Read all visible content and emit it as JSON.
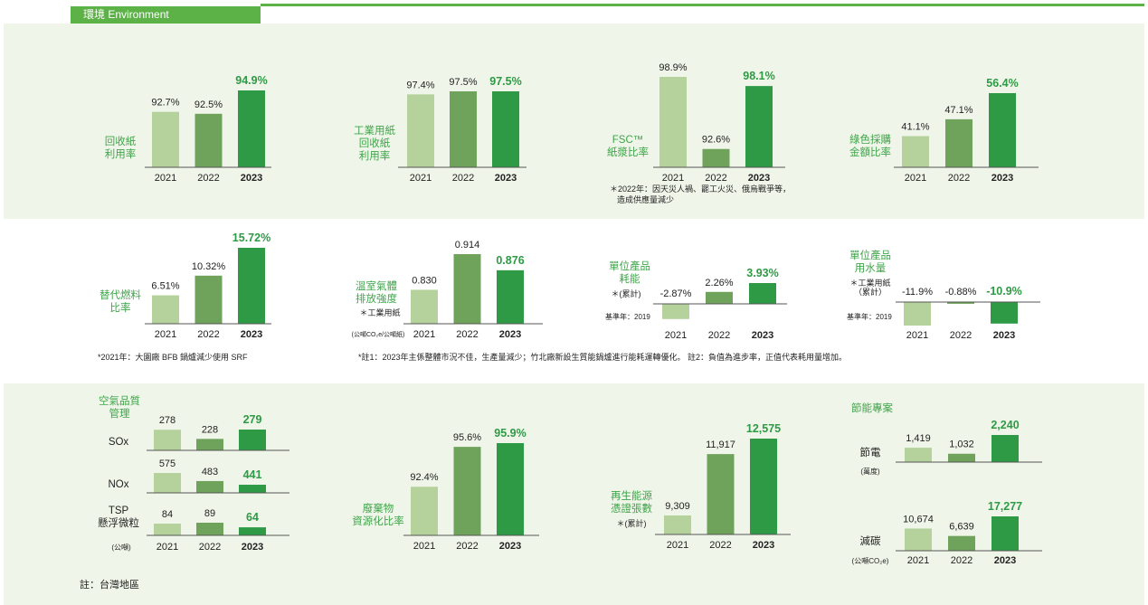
{
  "header": {
    "title": "環境 Environment"
  },
  "colors": {
    "c2021": "#b5d19c",
    "c2022": "#6fa35c",
    "c2023": "#2e9a45",
    "label_green": "#3fa44a",
    "axis": "#555555"
  },
  "chart_data": [
    {
      "type": "bar",
      "title_lines": [
        "回收紙",
        "利用率"
      ],
      "categories": [
        "2021",
        "2022",
        "2023"
      ],
      "values": [
        92.7,
        92.5,
        94.9
      ],
      "value_labels": [
        "92.7%",
        "92.5%",
        "94.9%"
      ]
    },
    {
      "type": "bar",
      "title_lines": [
        "工業用紙",
        "回收紙",
        "利用率"
      ],
      "categories": [
        "2021",
        "2022",
        "2023"
      ],
      "values": [
        97.4,
        97.5,
        97.5
      ],
      "value_labels": [
        "97.4%",
        "97.5%",
        "97.5%"
      ]
    },
    {
      "type": "bar",
      "title_lines": [
        "FSC™",
        "紙漿比率"
      ],
      "categories": [
        "2021",
        "2022",
        "2023"
      ],
      "values": [
        98.9,
        92.6,
        98.1
      ],
      "value_labels": [
        "98.9%",
        "92.6%",
        "98.1%"
      ],
      "notes": [
        "＊2022年：因天災人禍、罷工火災、俄烏戰爭等，",
        "造成供應量減少"
      ]
    },
    {
      "type": "bar",
      "title_lines": [
        "綠色採購",
        "金額比率"
      ],
      "categories": [
        "2021",
        "2022",
        "2023"
      ],
      "values": [
        41.1,
        47.1,
        56.4
      ],
      "value_labels": [
        "41.1%",
        "47.1%",
        "56.4%"
      ]
    },
    {
      "type": "bar",
      "title_lines": [
        "替代燃料",
        "比率"
      ],
      "categories": [
        "2021",
        "2022",
        "2023"
      ],
      "values": [
        6.51,
        10.32,
        15.72
      ],
      "value_labels": [
        "6.51%",
        "10.32%",
        "15.72%"
      ],
      "footnote": "*2021年：大園廠 BFB 鍋爐減少使用 SRF"
    },
    {
      "type": "bar",
      "title_lines": [
        "溫室氣體",
        "排放強度"
      ],
      "subtitle": "＊工業用紙",
      "unit": "(公噸CO₂e/公噸紙)",
      "categories": [
        "2021",
        "2022",
        "2023"
      ],
      "values": [
        0.83,
        0.914,
        0.876
      ],
      "value_labels": [
        "0.830",
        "0.914",
        "0.876"
      ]
    },
    {
      "type": "bar",
      "title_lines": [
        "單位產品",
        "耗能"
      ],
      "subtitle": "＊(累計)",
      "baseline": "基準年：2019",
      "categories": [
        "2021",
        "2022",
        "2023"
      ],
      "values": [
        -2.87,
        2.26,
        3.93
      ],
      "value_labels": [
        "-2.87%",
        "2.26%",
        "3.93%"
      ]
    },
    {
      "type": "bar",
      "title_lines": [
        "單位產品",
        "用水量"
      ],
      "subtitle_lines": [
        "＊工業用紙",
        "（累計）"
      ],
      "baseline": "基準年：2019",
      "categories": [
        "2021",
        "2022",
        "2023"
      ],
      "values": [
        -11.9,
        -0.88,
        -10.9
      ],
      "value_labels": [
        "-11.9%",
        "-0.88%",
        "-10.9%"
      ]
    },
    {
      "type": "bar",
      "title_lines": [
        "空氣品質",
        "管理"
      ],
      "unit": "(公噸)",
      "categories": [
        "2021",
        "2022",
        "2023"
      ],
      "series": [
        {
          "name": "SOx",
          "values": [
            278,
            228,
            279
          ],
          "value_labels": [
            "278",
            "228",
            "279"
          ]
        },
        {
          "name": "NOx",
          "values": [
            575,
            483,
            441
          ],
          "value_labels": [
            "575",
            "483",
            "441"
          ]
        },
        {
          "name_lines": [
            "TSP",
            "懸浮微粒"
          ],
          "values": [
            84,
            89,
            64
          ],
          "value_labels": [
            "84",
            "89",
            "64"
          ]
        }
      ]
    },
    {
      "type": "bar",
      "title_lines": [
        "廢棄物",
        "資源化比率"
      ],
      "categories": [
        "2021",
        "2022",
        "2023"
      ],
      "values": [
        92.4,
        95.6,
        95.9
      ],
      "value_labels": [
        "92.4%",
        "95.6%",
        "95.9%"
      ]
    },
    {
      "type": "bar",
      "title_lines": [
        "再生能源",
        "憑證張數"
      ],
      "subtitle": "＊(累計)",
      "categories": [
        "2021",
        "2022",
        "2023"
      ],
      "values": [
        9309,
        11917,
        12575
      ],
      "value_labels": [
        "9,309",
        "11,917",
        "12,575"
      ]
    },
    {
      "type": "bar",
      "title_lines": [
        "節能專案"
      ],
      "categories": [
        "2021",
        "2022",
        "2023"
      ],
      "series": [
        {
          "name": "節電",
          "unit": "(萬度)",
          "values": [
            1419,
            1032,
            2240
          ],
          "value_labels": [
            "1,419",
            "1,032",
            "2,240"
          ]
        },
        {
          "name": "減碳",
          "unit": "(公噸CO₂e)",
          "values": [
            10674,
            6639,
            17277
          ],
          "value_labels": [
            "10,674",
            "6,639",
            "17,277"
          ]
        }
      ]
    }
  ],
  "footnotes": {
    "row2": "*註1：2023年主係整體市況不佳，生產量減少；竹北廠新設生質能鍋爐進行能耗運轉優化。 註2：負值為進步率，正值代表耗用量增加。",
    "bottom": "註：台灣地區"
  }
}
